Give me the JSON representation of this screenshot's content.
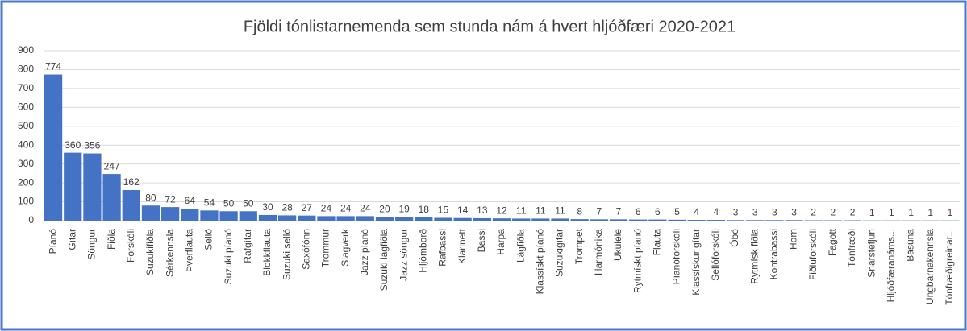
{
  "chart_data": {
    "type": "bar",
    "title": "Fjöldi tónlistarnemenda sem stunda nám á hvert hljóðfæri 2020-2021",
    "categories": [
      "Píanó",
      "Gítar",
      "Söngur",
      "Fiðla",
      "Forskóli",
      "Suzukifiðla",
      "Sérkennsla",
      "Þverflauta",
      "Selló",
      "Suzuki píanó",
      "Rafgítar",
      "Blokkflauta",
      "Suzuki selló",
      "Saxófónn",
      "Trommur",
      "Slagverk",
      "Jazz píanó",
      "Suzuki lágfiðla",
      "Jazz söngur",
      "Hljómborð",
      "Rafbassi",
      "Klarinett",
      "Bassi",
      "Harpa",
      "Lágfiðla",
      "Klassískt píanó",
      "Suzukigítar",
      "Trompet",
      "Harmónika",
      "Ukulele",
      "Rytmískt píanó",
      "Flauta",
      "Píanóforskóli",
      "Klassískur gítar",
      "Sellóforskóli",
      "Óbó",
      "Rytmísk fiðla",
      "Kontrabassi",
      "Horn",
      "Fiðluforskóli",
      "Fagott",
      "Tónfræði",
      "Snarstefjun",
      "Hljóðfæranáms...",
      "Básúna",
      "Ungbarnakennsla",
      "Tónfræðigreinar..."
    ],
    "values": [
      774,
      360,
      356,
      247,
      162,
      80,
      72,
      64,
      54,
      50,
      50,
      30,
      28,
      27,
      24,
      24,
      24,
      20,
      19,
      18,
      15,
      14,
      13,
      12,
      11,
      11,
      11,
      8,
      7,
      7,
      6,
      6,
      5,
      4,
      4,
      3,
      3,
      3,
      3,
      2,
      2,
      2,
      1,
      1,
      1,
      1,
      1
    ],
    "color": "#4472c4",
    "ylim": [
      0,
      900
    ],
    "yticks": [
      0,
      100,
      200,
      300,
      400,
      500,
      600,
      700,
      800,
      900
    ],
    "grid": true
  }
}
